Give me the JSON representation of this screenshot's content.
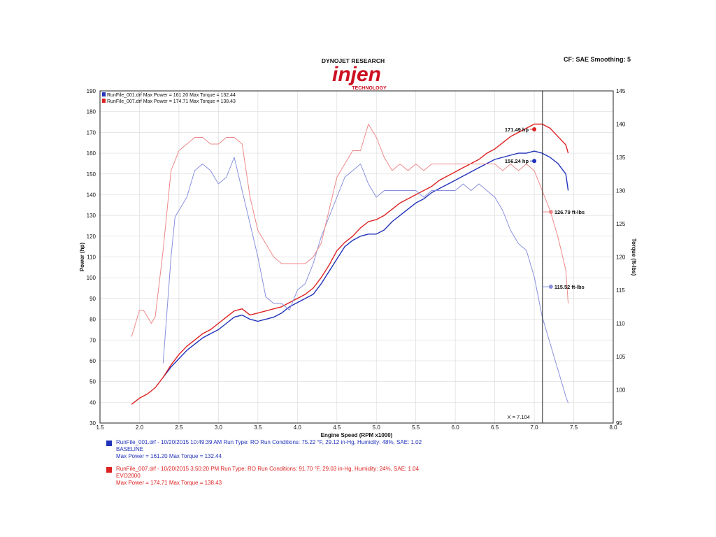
{
  "header": {
    "brand_top": "DYNOJET RESEARCH",
    "logo_text": "injen",
    "logo_sub": "TECHNOLOGY",
    "cf_label": "CF: SAE  Smoothing: 5"
  },
  "colors": {
    "baseline": "#2233bb",
    "evo": "#dd2222",
    "grid": "#dddddd",
    "axis": "#222222"
  },
  "chart_data": {
    "type": "line",
    "xlabel": "Engine Speed (RPM x1000)",
    "ylabel": "Power (hp)",
    "y2label": "Torque (ft-lbs)",
    "xlim": [
      1.5,
      8.0
    ],
    "ylim": [
      30,
      190
    ],
    "y2lim": [
      95,
      145
    ],
    "xticks": [
      "1.5",
      "2.0",
      "2.5",
      "3.0",
      "3.5",
      "4.0",
      "4.5",
      "5.0",
      "5.5",
      "6.0",
      "6.5",
      "7.0",
      "7.5",
      "8.0"
    ],
    "yticks": [
      "30",
      "40",
      "50",
      "60",
      "70",
      "80",
      "90",
      "100",
      "110",
      "120",
      "130",
      "140",
      "150",
      "160",
      "170",
      "180",
      "190"
    ],
    "y2ticks": [
      "95",
      "100",
      "105",
      "110",
      "115",
      "120",
      "125",
      "130",
      "135",
      "140",
      "145"
    ],
    "legend": [
      {
        "text": "RunFile_001.drf Max Power = 161.20     Max Torque = 132.44",
        "color": "#2233bb"
      },
      {
        "text": "RunFile_007.drf Max Power = 174.71     Max Torque = 138.43",
        "color": "#dd2222"
      }
    ],
    "cursor": {
      "x": 7.104,
      "label": "X = 7.104"
    },
    "series": [
      {
        "name": "RunFile_001.drf",
        "kind": "power",
        "axis": "left",
        "color": "#2233bb",
        "x": [
          2.3,
          2.4,
          2.5,
          2.6,
          2.7,
          2.8,
          2.9,
          3.0,
          3.1,
          3.2,
          3.3,
          3.4,
          3.5,
          3.6,
          3.7,
          3.8,
          3.9,
          4.0,
          4.1,
          4.2,
          4.3,
          4.4,
          4.5,
          4.6,
          4.7,
          4.8,
          4.9,
          5.0,
          5.1,
          5.2,
          5.3,
          5.4,
          5.5,
          5.6,
          5.7,
          5.8,
          5.9,
          6.0,
          6.1,
          6.2,
          6.3,
          6.4,
          6.5,
          6.6,
          6.7,
          6.8,
          6.9,
          7.0,
          7.1,
          7.2,
          7.3,
          7.4,
          7.43
        ],
        "y": [
          52,
          57,
          61,
          65,
          68,
          71,
          73,
          75,
          78,
          81,
          82,
          80,
          79,
          80,
          81,
          83,
          86,
          88,
          90,
          92,
          97,
          103,
          109,
          115,
          118,
          120,
          121,
          121,
          123,
          127,
          130,
          133,
          136,
          138,
          141,
          143,
          145,
          147,
          149,
          151,
          153,
          155,
          157,
          158,
          159,
          160,
          160,
          161,
          160,
          158,
          155,
          150,
          142
        ]
      },
      {
        "name": "RunFile_007.drf",
        "kind": "power",
        "axis": "left",
        "color": "#dd2222",
        "x": [
          1.9,
          2.0,
          2.1,
          2.2,
          2.3,
          2.4,
          2.5,
          2.6,
          2.7,
          2.8,
          2.9,
          3.0,
          3.1,
          3.2,
          3.3,
          3.4,
          3.5,
          3.6,
          3.7,
          3.8,
          3.9,
          4.0,
          4.1,
          4.2,
          4.3,
          4.4,
          4.5,
          4.6,
          4.7,
          4.8,
          4.9,
          5.0,
          5.1,
          5.2,
          5.3,
          5.4,
          5.5,
          5.6,
          5.7,
          5.8,
          5.9,
          6.0,
          6.1,
          6.2,
          6.3,
          6.4,
          6.5,
          6.6,
          6.7,
          6.8,
          6.9,
          7.0,
          7.1,
          7.2,
          7.3,
          7.4,
          7.43
        ],
        "y": [
          39,
          42,
          44,
          47,
          52,
          58,
          63,
          67,
          70,
          73,
          75,
          78,
          81,
          84,
          85,
          82,
          83,
          84,
          85,
          86,
          88,
          90,
          92,
          95,
          100,
          106,
          113,
          117,
          120,
          124,
          127,
          128,
          130,
          133,
          136,
          138,
          140,
          142,
          144,
          147,
          149,
          151,
          153,
          155,
          157,
          160,
          162,
          165,
          168,
          170,
          172,
          174,
          174,
          172,
          168,
          164,
          160
        ]
      },
      {
        "name": "RunFile_001.drf",
        "kind": "torque",
        "axis": "right",
        "color": "#8890dd",
        "x": [
          2.3,
          2.4,
          2.45,
          2.5,
          2.6,
          2.7,
          2.8,
          2.9,
          3.0,
          3.1,
          3.2,
          3.3,
          3.4,
          3.5,
          3.6,
          3.7,
          3.8,
          3.9,
          4.0,
          4.1,
          4.2,
          4.3,
          4.4,
          4.5,
          4.6,
          4.7,
          4.8,
          4.9,
          5.0,
          5.1,
          5.2,
          5.3,
          5.4,
          5.5,
          5.6,
          5.7,
          5.8,
          5.9,
          6.0,
          6.1,
          6.2,
          6.3,
          6.4,
          6.5,
          6.6,
          6.7,
          6.8,
          6.9,
          7.0,
          7.1,
          7.2,
          7.3,
          7.4,
          7.43
        ],
        "y": [
          104,
          120,
          126,
          127,
          129,
          133,
          134,
          133,
          131,
          132,
          135,
          130,
          125,
          120,
          114,
          113,
          113,
          112,
          115,
          116,
          119,
          123,
          126,
          129,
          132,
          133,
          134,
          131,
          129,
          130,
          130,
          130,
          130,
          130,
          129,
          130,
          130,
          130,
          130,
          131,
          130,
          131,
          130,
          129,
          127,
          124,
          122,
          121,
          117,
          111,
          107,
          103,
          99,
          98
        ]
      },
      {
        "name": "RunFile_007.drf",
        "kind": "torque",
        "axis": "right",
        "color": "#ee8888",
        "x": [
          1.9,
          2.0,
          2.05,
          2.1,
          2.15,
          2.2,
          2.3,
          2.4,
          2.5,
          2.6,
          2.7,
          2.8,
          2.9,
          3.0,
          3.1,
          3.2,
          3.3,
          3.4,
          3.5,
          3.6,
          3.7,
          3.8,
          3.9,
          4.0,
          4.1,
          4.2,
          4.3,
          4.4,
          4.5,
          4.6,
          4.7,
          4.8,
          4.9,
          5.0,
          5.1,
          5.2,
          5.3,
          5.4,
          5.5,
          5.6,
          5.7,
          5.8,
          5.9,
          6.0,
          6.1,
          6.2,
          6.3,
          6.4,
          6.5,
          6.6,
          6.7,
          6.8,
          6.9,
          7.0,
          7.1,
          7.2,
          7.3,
          7.4,
          7.43
        ],
        "y": [
          108,
          112,
          112,
          111,
          110,
          111,
          121,
          133,
          136,
          137,
          138,
          138,
          137,
          137,
          138,
          138,
          137,
          129,
          124,
          122,
          120,
          119,
          119,
          119,
          119,
          120,
          122,
          127,
          132,
          134,
          136,
          136,
          140,
          138,
          135,
          133,
          134,
          133,
          134,
          133,
          134,
          134,
          134,
          134,
          134,
          134,
          134,
          134,
          134,
          133,
          134,
          133,
          134,
          133,
          130,
          127,
          123,
          118,
          113
        ]
      }
    ],
    "markers": [
      {
        "x": 7.0,
        "value": 171.49,
        "axis": "left",
        "color": "#dd2222",
        "label": "171.49 hp",
        "side": "left"
      },
      {
        "x": 7.0,
        "value": 156.24,
        "axis": "left",
        "color": "#2233bb",
        "label": "156.24 hp",
        "side": "left"
      },
      {
        "x": 7.104,
        "value": 126.79,
        "axis": "right",
        "color": "#ee8888",
        "label": "126.79 ft-lbs",
        "side": "right"
      },
      {
        "x": 7.104,
        "value": 115.52,
        "axis": "right",
        "color": "#8890dd",
        "label": "115.52 ft-lbs",
        "side": "right"
      }
    ]
  },
  "footer": {
    "runs": [
      {
        "color": "#2233bb",
        "line1": "RunFile_001.drf - 10/20/2015 10:49:39 AM  Run Type: RO  Run Conditions: 75.22 °F, 29.12 in-Hg,  Humidity:  48%, SAE: 1.02",
        "line2": "BASELINE",
        "line3": "Max Power = 161.20   Max Torque = 132.44"
      },
      {
        "color": "#dd2222",
        "line1": "RunFile_007.drf - 10/20/2015 3:50:20 PM  Run Type: RO  Run Conditions: 91.70 °F, 29.03 in-Hg,  Humidity:  24%, SAE: 1.04",
        "line2": "EVO2000",
        "line3": "Max Power = 174.71   Max Torque = 138.43"
      }
    ]
  }
}
